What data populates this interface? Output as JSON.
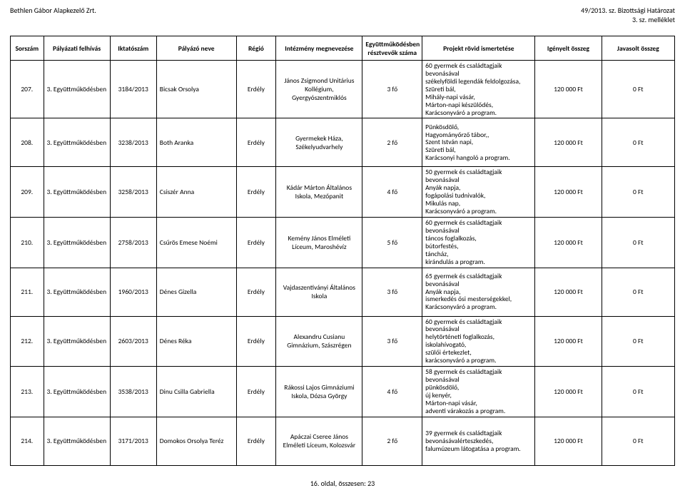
{
  "header": {
    "company": "Bethlen Gábor Alapkezelő Zrt.",
    "doc_ref_1": "49/2013. sz. Bizottsági Határozat",
    "doc_ref_2": "3. sz. melléklet"
  },
  "columns": {
    "c0": "Sorszám",
    "c1": "Pályázati felhívás",
    "c2": "Iktatószám",
    "c3": "Pályázó neve",
    "c4": "Régió",
    "c5": "Intézmény megnevezése",
    "c6": "Együttműködésben résztvevők száma",
    "c7": "Projekt rövid ismertetése",
    "c8": "Igényelt összeg",
    "c9": "Javasolt összeg"
  },
  "col_widths": [
    "5%",
    "10%",
    "7%",
    "12%",
    "6%",
    "13%",
    "9%",
    "17%",
    "10%",
    "11%"
  ],
  "rows": [
    {
      "n": "207.",
      "felh": "3. Együttműködésben",
      "ikt": "3184/2013",
      "nev": "Bicsak Orsolya",
      "reg": "Erdély",
      "int": "János Zsigmond Unitárius Kollégium, Gyergyószentmiklós",
      "fo": "3 fő",
      "desc": "60 gyermek és családtagjaik bevonásával\nszékelyföldi legendák feldolgozása,\nSzüreti bál,\nMihály-napi vásár,\nMárton-napi készülődés,\nKarácsonyváró a program.",
      "ig": "120 000 Ft",
      "jav": "0 Ft"
    },
    {
      "n": "208.",
      "felh": "3. Együttműködésben",
      "ikt": "3238/2013",
      "nev": "Both Aranka",
      "reg": "Erdély",
      "int": "Gyermekek Háza, Székelyudvarhely",
      "fo": "2 fő",
      "desc": "Pünkösdölő,\nHagyományőrző tábor,,\nSzent István napi,\nSzüreti bál,\nKarácsonyi hangoló a program.",
      "ig": "120 000 Ft",
      "jav": "0 Ft"
    },
    {
      "n": "209.",
      "felh": "3. Együttműködésben",
      "ikt": "3258/2013",
      "nev": "Csiszér Anna",
      "reg": "Erdély",
      "int": "Kádár Márton Általános Iskola, Mezőpanit",
      "fo": "4 fő",
      "desc": "50 gyermek és családtagjaik bevonásával\nAnyák napja,\nfogápolási tudnivalók,\nMikulás nap,\nKarácsonyváró a program.",
      "ig": "120 000 Ft",
      "jav": "0 Ft"
    },
    {
      "n": "210.",
      "felh": "3. Együttműködésben",
      "ikt": "2758/2013",
      "nev": "Csűrös Emese Noémi",
      "reg": "Erdély",
      "int": "Kemény János Elméleti Líceum, Maroshévíz",
      "fo": "5 fő",
      "desc": "60 gyermek és családtagjaik bevonásával\ntáncos foglalkozás,\nbútorfestés,\ntáncház,\nkirándulás a program.",
      "ig": "120 000 Ft",
      "jav": "0 Ft"
    },
    {
      "n": "211.",
      "felh": "3. Együttműködésben",
      "ikt": "1960/2013",
      "nev": "Dénes Gizella",
      "reg": "Erdély",
      "int": "Vajdaszentiványi Általános Iskola",
      "fo": "3 fő",
      "desc": "65 gyermek és családtagjaik bevonásával\nAnyák napja,\nismerkedés ősi mesterségekkel,\nKarácsonyváró a program.",
      "ig": "120 000 Ft",
      "jav": "0 Ft"
    },
    {
      "n": "212.",
      "felh": "3. Együttműködésben",
      "ikt": "2603/2013",
      "nev": "Dénes Réka",
      "reg": "Erdély",
      "int": "Alexandru Cusianu Gimnázium, Szászrégen",
      "fo": "3 fő",
      "desc": "60 gyermek és családtagjaik bevonásával\nhelytörténeti foglalkozás,\niskolahívogató,\nszülői értekezlet,\nkarácsonyváró a program.",
      "ig": "120 000 Ft",
      "jav": "0 Ft"
    },
    {
      "n": "213.",
      "felh": "3. Együttműködésben",
      "ikt": "3538/2013",
      "nev": "Dinu Csilla Gabriella",
      "reg": "Erdély",
      "int": "Rákossi Lajos Gimnáziumi Iskola, Dózsa György",
      "fo": "4 fő",
      "desc": "58 gyermek és családtagjaik bevonásával\npünkösdölő,\núj kenyér,\nMárton-napi vásár,\nadventi várakozás a program.",
      "ig": "120 000 Ft",
      "jav": "0 Ft"
    },
    {
      "n": "214.",
      "felh": "3. Együttműködésben",
      "ikt": "3171/2013",
      "nev": "Domokos Orsolya Teréz",
      "reg": "Erdély",
      "int": "Apáczai Cseree János Elméleti Líceum, Kolozsvár",
      "fo": "2 fő",
      "desc": "39 gyermek és családtagjaik bevonásávalértesz­kedés,\nfalumúzeum látogatása a program.",
      "ig": "120 000 Ft",
      "jav": "0 Ft"
    }
  ],
  "footer": "16. oldal, összesen: 23"
}
